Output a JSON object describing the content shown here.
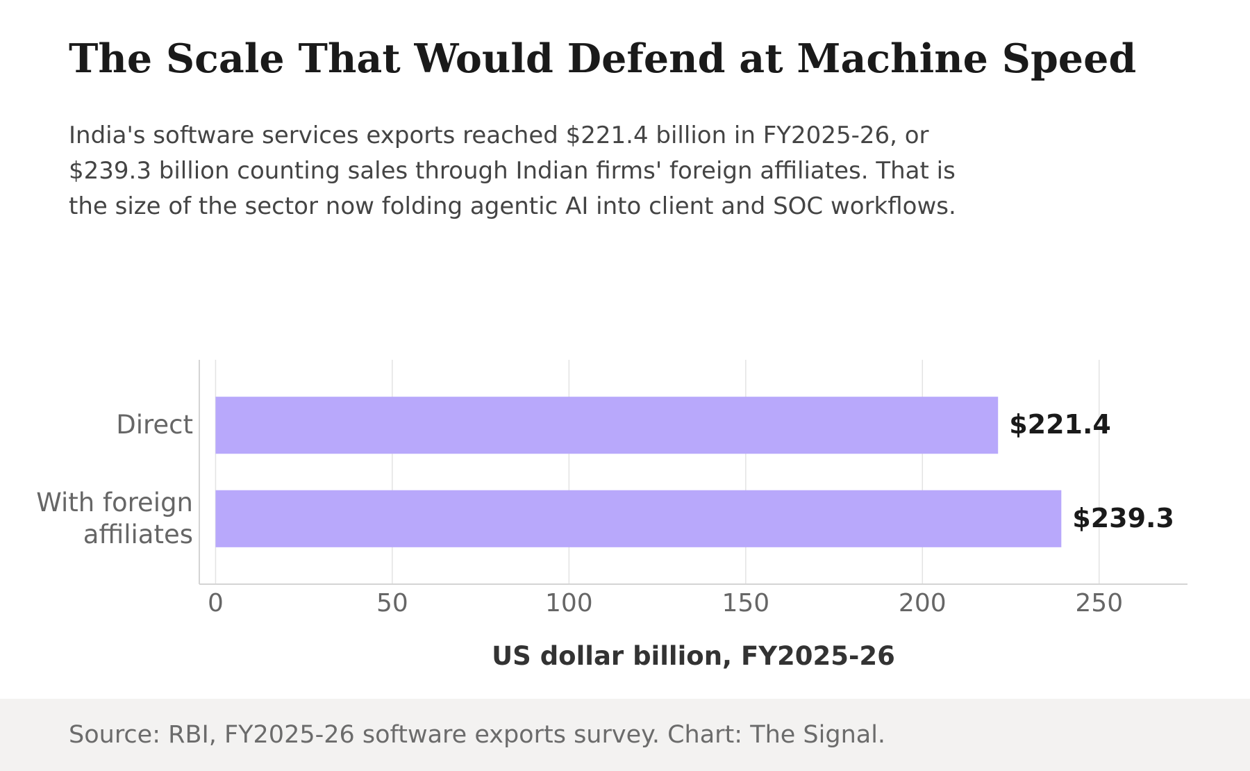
{
  "header": {
    "title": "The Scale That Would Defend at Machine Speed",
    "subtitle": "India's software services exports reached $221.4 billion in FY2025-26, or $239.3 billion counting sales through Indian firms' foreign affiliates. That is the size of the sector now folding agentic AI into client and SOC workflows."
  },
  "chart_data": {
    "type": "bar",
    "orientation": "horizontal",
    "categories": [
      [
        "Direct"
      ],
      [
        "With foreign",
        "affiliates"
      ]
    ],
    "values": [
      221.4,
      239.3
    ],
    "value_labels": [
      "$221.4",
      "$239.3"
    ],
    "xlabel": "US dollar billion, FY2025-26",
    "xticks": [
      0,
      50,
      100,
      150,
      200,
      250
    ],
    "xlim": [
      -4.6,
      275
    ],
    "grid": "vertical",
    "bar_color": "#b8a8fb"
  },
  "footer": {
    "source": "Source: RBI, FY2025-26 software exports survey. Chart: The Signal."
  }
}
